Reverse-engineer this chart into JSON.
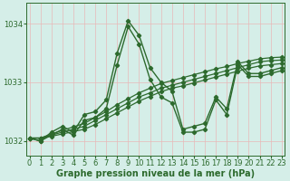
{
  "xlabel": "Graphe pression niveau de la mer (hPa)",
  "ylim": [
    1031.75,
    1034.35
  ],
  "xlim": [
    -0.3,
    23.3
  ],
  "yticks": [
    1032,
    1033,
    1034
  ],
  "xticks": [
    0,
    1,
    2,
    3,
    4,
    5,
    6,
    7,
    8,
    9,
    10,
    11,
    12,
    13,
    14,
    15,
    16,
    17,
    18,
    19,
    20,
    21,
    22,
    23
  ],
  "background_color": "#d5eee8",
  "grid_color": "#c0d8d0",
  "line_color": "#2d6a2d",
  "series_volatile": [
    [
      1032.05,
      1032.0,
      1032.15,
      1032.25,
      1032.15,
      1032.45,
      1032.5,
      1032.7,
      1033.5,
      1034.05,
      1033.8,
      1033.25,
      1033.0,
      1032.85,
      1032.2,
      1032.25,
      1032.3,
      1032.75,
      1032.55,
      1033.35,
      1033.15,
      1033.15,
      1033.2,
      1033.25
    ],
    [
      1032.05,
      1032.0,
      1032.1,
      1032.2,
      1032.1,
      1032.35,
      1032.4,
      1032.55,
      1033.3,
      1033.95,
      1033.65,
      1033.05,
      1032.75,
      1032.65,
      1032.15,
      1032.15,
      1032.2,
      1032.7,
      1032.45,
      1033.3,
      1033.1,
      1033.1,
      1033.15,
      1033.2
    ]
  ],
  "series_linear": [
    [
      1032.05,
      1032.05,
      1032.1,
      1032.15,
      1032.2,
      1032.25,
      1032.35,
      1032.45,
      1032.55,
      1032.65,
      1032.75,
      1032.82,
      1032.9,
      1032.95,
      1033.0,
      1033.05,
      1033.1,
      1033.15,
      1033.2,
      1033.25,
      1033.3,
      1033.35,
      1033.37,
      1033.38
    ],
    [
      1032.05,
      1032.05,
      1032.12,
      1032.18,
      1032.24,
      1032.3,
      1032.4,
      1032.5,
      1032.62,
      1032.72,
      1032.82,
      1032.9,
      1032.98,
      1033.03,
      1033.08,
      1033.13,
      1033.18,
      1033.23,
      1033.27,
      1033.32,
      1033.36,
      1033.4,
      1033.42,
      1033.43
    ],
    [
      1032.05,
      1032.05,
      1032.08,
      1032.12,
      1032.16,
      1032.2,
      1032.28,
      1032.38,
      1032.48,
      1032.58,
      1032.68,
      1032.76,
      1032.84,
      1032.9,
      1032.94,
      1032.99,
      1033.04,
      1033.09,
      1033.14,
      1033.19,
      1033.24,
      1033.28,
      1033.3,
      1033.32
    ]
  ],
  "marker": "D",
  "markersize": 2.2,
  "linewidth_volatile": 1.0,
  "linewidth_linear": 0.9,
  "tick_fontsize": 6,
  "xlabel_fontsize": 7
}
